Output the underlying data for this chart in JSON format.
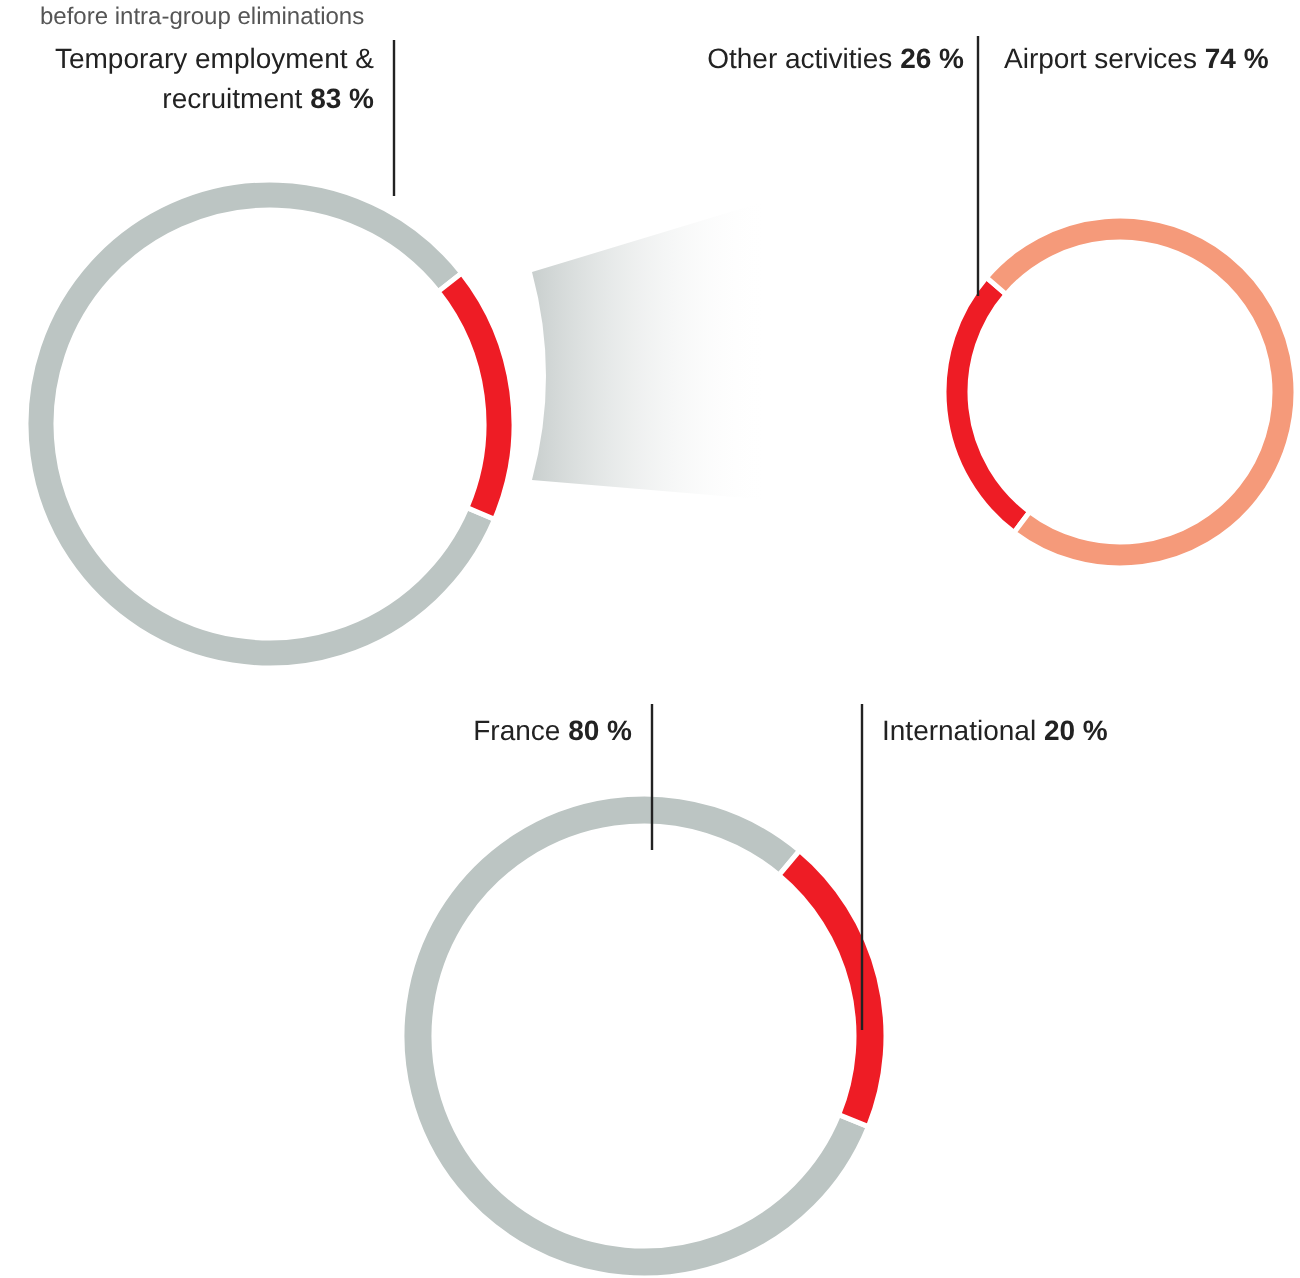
{
  "chart_data": [
    {
      "type": "donut",
      "categories": [
        "Temporary employment & recruitment",
        null
      ],
      "values": [
        83,
        17
      ],
      "colors": [
        "#bcc5c3",
        "#ee1c25"
      ],
      "value_labels": [
        "83 %",
        null
      ],
      "legend": false,
      "annotations": [
        "before intra-group eliminations"
      ]
    },
    {
      "type": "donut",
      "categories": [
        "Other activities",
        "Airport services"
      ],
      "values": [
        26,
        74
      ],
      "colors": [
        "#ee1c25",
        "#f59a7a"
      ],
      "value_labels": [
        "26 %",
        "74 %"
      ],
      "legend": false
    },
    {
      "type": "donut",
      "categories": [
        "France",
        "International"
      ],
      "values": [
        80,
        20
      ],
      "colors": [
        "#bcc5c3",
        "#ee1c25"
      ],
      "value_labels": [
        "80 %",
        "20 %"
      ],
      "legend": false
    }
  ]
}
